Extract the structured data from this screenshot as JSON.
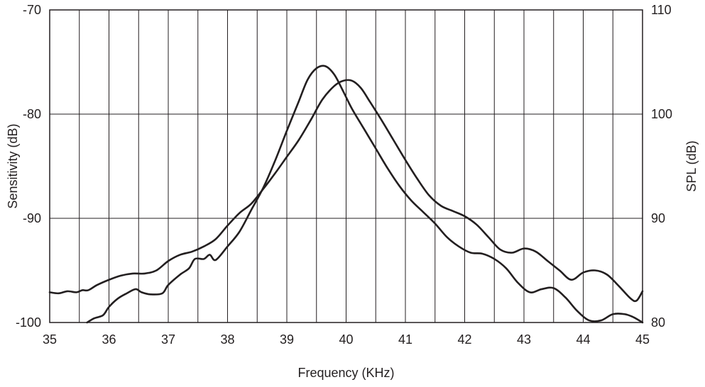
{
  "chart_data": {
    "type": "line",
    "title": "",
    "xlabel": "Frequency (KHz)",
    "ylabel_left": "Sensitivity (dB)",
    "ylabel_right": "SPL (dB)",
    "xlim": [
      35,
      45
    ],
    "ylim_left": [
      -100,
      -70
    ],
    "ylim_right": [
      80,
      110
    ],
    "x_ticks": [
      "35",
      "36",
      "37",
      "38",
      "39",
      "40",
      "41",
      "42",
      "43",
      "44",
      "45"
    ],
    "y_left_ticks": [
      "-70",
      "-80",
      "-90",
      "-100"
    ],
    "y_right_ticks": [
      "110",
      "100",
      "90",
      "80"
    ],
    "grid": {
      "vertical_step": 0.5,
      "horizontal_step": 10
    },
    "series": [
      {
        "axis": "left",
        "points": [
          [
            35.0,
            -97.1
          ],
          [
            35.15,
            -97.2
          ],
          [
            35.3,
            -97.0
          ],
          [
            35.45,
            -97.1
          ],
          [
            35.55,
            -96.9
          ],
          [
            35.65,
            -96.9
          ],
          [
            35.8,
            -96.4
          ],
          [
            36.0,
            -95.9
          ],
          [
            36.2,
            -95.5
          ],
          [
            36.4,
            -95.3
          ],
          [
            36.6,
            -95.3
          ],
          [
            36.8,
            -95.0
          ],
          [
            37.0,
            -94.1
          ],
          [
            37.2,
            -93.5
          ],
          [
            37.4,
            -93.2
          ],
          [
            37.6,
            -92.7
          ],
          [
            37.8,
            -92.0
          ],
          [
            38.0,
            -90.7
          ],
          [
            38.2,
            -89.5
          ],
          [
            38.4,
            -88.6
          ],
          [
            38.6,
            -87.2
          ],
          [
            38.8,
            -85.7
          ],
          [
            39.0,
            -84.1
          ],
          [
            39.2,
            -82.5
          ],
          [
            39.4,
            -80.6
          ],
          [
            39.6,
            -78.6
          ],
          [
            39.8,
            -77.3
          ],
          [
            39.95,
            -76.8
          ],
          [
            40.1,
            -76.8
          ],
          [
            40.25,
            -77.5
          ],
          [
            40.4,
            -78.8
          ],
          [
            40.6,
            -80.6
          ],
          [
            40.8,
            -82.5
          ],
          [
            41.0,
            -84.4
          ],
          [
            41.2,
            -86.2
          ],
          [
            41.4,
            -87.8
          ],
          [
            41.6,
            -88.8
          ],
          [
            41.8,
            -89.3
          ],
          [
            42.0,
            -89.8
          ],
          [
            42.2,
            -90.6
          ],
          [
            42.4,
            -91.8
          ],
          [
            42.6,
            -93.0
          ],
          [
            42.8,
            -93.3
          ],
          [
            43.0,
            -92.9
          ],
          [
            43.2,
            -93.2
          ],
          [
            43.4,
            -94.1
          ],
          [
            43.6,
            -95.0
          ],
          [
            43.8,
            -95.9
          ],
          [
            44.0,
            -95.2
          ],
          [
            44.2,
            -95.0
          ],
          [
            44.4,
            -95.4
          ],
          [
            44.6,
            -96.5
          ],
          [
            44.8,
            -97.7
          ],
          [
            44.9,
            -97.9
          ],
          [
            45.0,
            -97.0
          ]
        ]
      },
      {
        "axis": "right",
        "points": [
          [
            35.63,
            80.0
          ],
          [
            35.75,
            80.4
          ],
          [
            35.9,
            80.7
          ],
          [
            36.0,
            81.5
          ],
          [
            36.15,
            82.3
          ],
          [
            36.3,
            82.8
          ],
          [
            36.45,
            83.2
          ],
          [
            36.55,
            82.9
          ],
          [
            36.7,
            82.7
          ],
          [
            36.9,
            82.8
          ],
          [
            37.0,
            83.6
          ],
          [
            37.2,
            84.6
          ],
          [
            37.35,
            85.2
          ],
          [
            37.45,
            86.1
          ],
          [
            37.6,
            86.1
          ],
          [
            37.7,
            86.5
          ],
          [
            37.8,
            86.0
          ],
          [
            38.0,
            87.3
          ],
          [
            38.2,
            88.7
          ],
          [
            38.4,
            90.8
          ],
          [
            38.6,
            92.9
          ],
          [
            38.8,
            95.5
          ],
          [
            39.0,
            98.4
          ],
          [
            39.2,
            101.2
          ],
          [
            39.35,
            103.3
          ],
          [
            39.5,
            104.4
          ],
          [
            39.65,
            104.6
          ],
          [
            39.8,
            103.8
          ],
          [
            39.95,
            102.2
          ],
          [
            40.1,
            100.5
          ],
          [
            40.3,
            98.6
          ],
          [
            40.5,
            96.7
          ],
          [
            40.7,
            94.8
          ],
          [
            40.9,
            93.1
          ],
          [
            41.1,
            91.7
          ],
          [
            41.3,
            90.6
          ],
          [
            41.5,
            89.5
          ],
          [
            41.7,
            88.2
          ],
          [
            41.9,
            87.3
          ],
          [
            42.1,
            86.7
          ],
          [
            42.3,
            86.6
          ],
          [
            42.5,
            86.1
          ],
          [
            42.7,
            85.2
          ],
          [
            42.9,
            83.8
          ],
          [
            43.1,
            82.9
          ],
          [
            43.3,
            83.2
          ],
          [
            43.5,
            83.3
          ],
          [
            43.7,
            82.4
          ],
          [
            43.9,
            81.1
          ],
          [
            44.1,
            80.2
          ],
          [
            44.3,
            80.2
          ],
          [
            44.5,
            80.8
          ],
          [
            44.7,
            80.8
          ],
          [
            44.85,
            80.5
          ],
          [
            45.0,
            80.0
          ]
        ]
      }
    ]
  }
}
